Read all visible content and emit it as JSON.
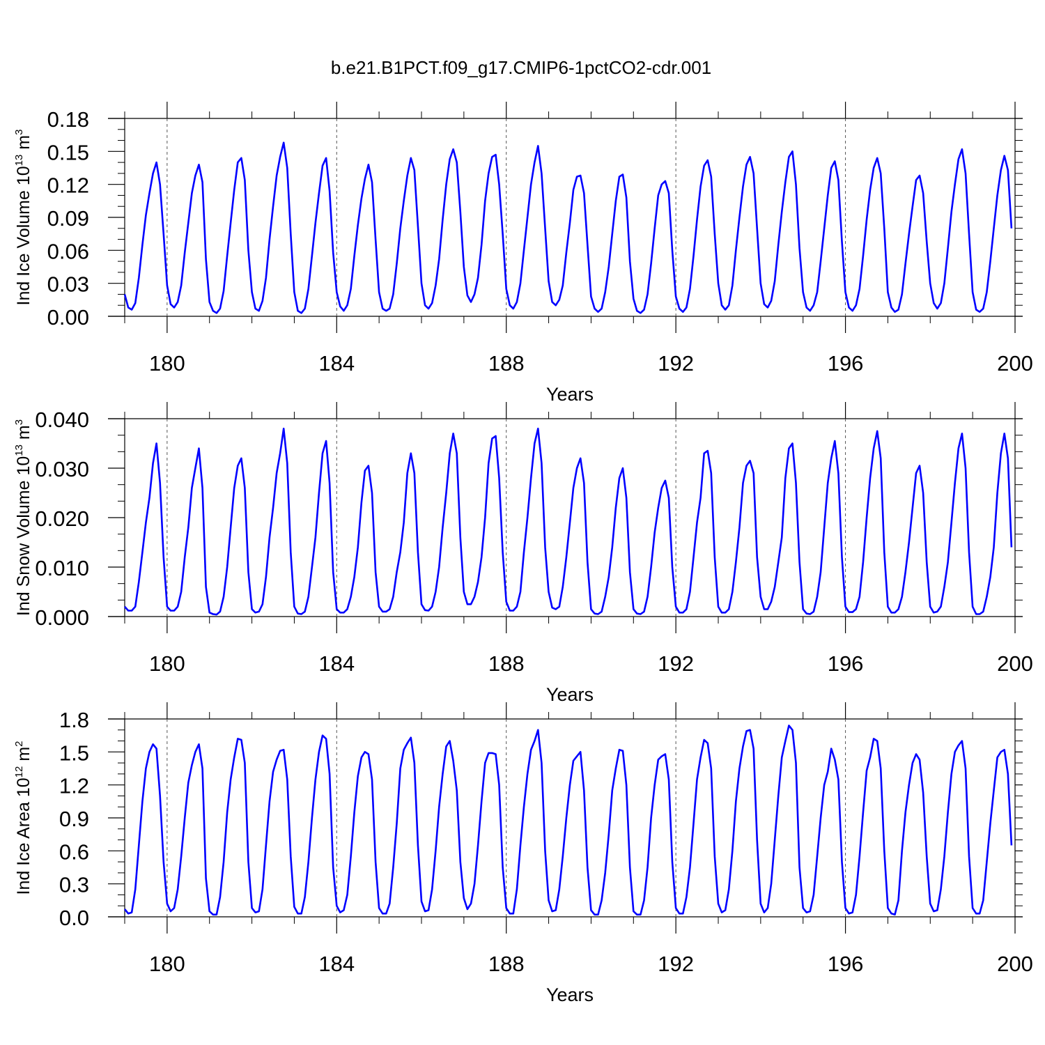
{
  "title": "b.e21.B1PCT.f09_g17.CMIP6-1pctCO2-cdr.001",
  "line_color": "#0000ff",
  "chart_data": [
    {
      "type": "line",
      "title": "",
      "xlabel": "Years",
      "ylabel_text": "Ind Ice Volume 10",
      "ylabel_exp": "13",
      "ylabel_unit": " m",
      "ylabel_unit_exp": "3",
      "xlim": [
        179,
        200
      ],
      "ylim": [
        0,
        0.18
      ],
      "xticks": [
        180,
        184,
        188,
        192,
        196,
        200
      ],
      "xtick_labels": [
        "180",
        "184",
        "188",
        "192",
        "196",
        "200"
      ],
      "yticks": [
        0,
        0.03,
        0.06,
        0.09,
        0.12,
        0.15,
        0.18
      ],
      "ytick_labels": [
        "0.00",
        "0.03",
        "0.06",
        "0.09",
        "0.12",
        "0.15",
        "0.18"
      ],
      "dashed_x": [
        180,
        184,
        188,
        192,
        196
      ],
      "series": [
        {
          "color": "#0000ff",
          "x_start": 179.0,
          "x_step": 0.08333,
          "values": [
            0.02,
            0.008,
            0.006,
            0.012,
            0.035,
            0.065,
            0.092,
            0.112,
            0.13,
            0.14,
            0.12,
            0.075,
            0.028,
            0.011,
            0.008,
            0.013,
            0.028,
            0.058,
            0.085,
            0.112,
            0.128,
            0.138,
            0.122,
            0.052,
            0.013,
            0.005,
            0.003,
            0.007,
            0.023,
            0.055,
            0.085,
            0.115,
            0.14,
            0.144,
            0.124,
            0.06,
            0.022,
            0.007,
            0.005,
            0.014,
            0.035,
            0.07,
            0.1,
            0.128,
            0.145,
            0.158,
            0.135,
            0.075,
            0.022,
            0.005,
            0.003,
            0.007,
            0.025,
            0.055,
            0.085,
            0.112,
            0.137,
            0.144,
            0.114,
            0.058,
            0.022,
            0.009,
            0.005,
            0.01,
            0.025,
            0.055,
            0.083,
            0.107,
            0.125,
            0.138,
            0.122,
            0.07,
            0.022,
            0.007,
            0.005,
            0.007,
            0.02,
            0.048,
            0.08,
            0.105,
            0.128,
            0.144,
            0.133,
            0.082,
            0.03,
            0.01,
            0.007,
            0.012,
            0.028,
            0.052,
            0.088,
            0.12,
            0.143,
            0.152,
            0.14,
            0.095,
            0.045,
            0.019,
            0.013,
            0.02,
            0.035,
            0.065,
            0.105,
            0.13,
            0.145,
            0.147,
            0.12,
            0.075,
            0.025,
            0.01,
            0.007,
            0.013,
            0.03,
            0.06,
            0.09,
            0.12,
            0.14,
            0.155,
            0.13,
            0.08,
            0.032,
            0.013,
            0.01,
            0.015,
            0.028,
            0.058,
            0.085,
            0.115,
            0.127,
            0.128,
            0.112,
            0.065,
            0.018,
            0.007,
            0.004,
            0.007,
            0.022,
            0.045,
            0.075,
            0.105,
            0.127,
            0.129,
            0.108,
            0.05,
            0.016,
            0.005,
            0.003,
            0.006,
            0.02,
            0.048,
            0.08,
            0.11,
            0.12,
            0.123,
            0.112,
            0.06,
            0.018,
            0.007,
            0.004,
            0.008,
            0.025,
            0.055,
            0.088,
            0.118,
            0.137,
            0.142,
            0.127,
            0.075,
            0.03,
            0.01,
            0.006,
            0.01,
            0.028,
            0.06,
            0.09,
            0.118,
            0.138,
            0.145,
            0.13,
            0.08,
            0.03,
            0.011,
            0.008,
            0.014,
            0.032,
            0.065,
            0.095,
            0.122,
            0.145,
            0.15,
            0.12,
            0.062,
            0.022,
            0.008,
            0.005,
            0.01,
            0.022,
            0.05,
            0.08,
            0.11,
            0.135,
            0.141,
            0.124,
            0.068,
            0.022,
            0.008,
            0.005,
            0.01,
            0.025,
            0.055,
            0.088,
            0.115,
            0.135,
            0.144,
            0.13,
            0.08,
            0.022,
            0.008,
            0.004,
            0.006,
            0.02,
            0.048,
            0.075,
            0.1,
            0.124,
            0.128,
            0.112,
            0.068,
            0.03,
            0.012,
            0.007,
            0.012,
            0.03,
            0.062,
            0.095,
            0.12,
            0.143,
            0.152,
            0.13,
            0.075,
            0.022,
            0.006,
            0.004,
            0.007,
            0.022,
            0.05,
            0.08,
            0.11,
            0.133,
            0.146,
            0.133,
            0.08
          ]
        }
      ]
    },
    {
      "type": "line",
      "title": "",
      "xlabel": "Years",
      "ylabel_text": "Ind Snow Volume 10",
      "ylabel_exp": "13",
      "ylabel_unit": " m",
      "ylabel_unit_exp": "3",
      "xlim": [
        179,
        200
      ],
      "ylim": [
        0,
        0.04
      ],
      "xticks": [
        180,
        184,
        188,
        192,
        196,
        200
      ],
      "xtick_labels": [
        "180",
        "184",
        "188",
        "192",
        "196",
        "200"
      ],
      "yticks": [
        0,
        0.01,
        0.02,
        0.03,
        0.04
      ],
      "ytick_labels": [
        "0.000",
        "0.010",
        "0.020",
        "0.030",
        "0.040"
      ],
      "dashed_x": [
        180,
        184,
        188,
        192,
        196
      ],
      "series": [
        {
          "color": "#0000ff",
          "x_start": 179.0,
          "x_step": 0.08333,
          "values": [
            0.002,
            0.0012,
            0.0012,
            0.002,
            0.007,
            0.013,
            0.019,
            0.024,
            0.031,
            0.035,
            0.027,
            0.012,
            0.002,
            0.0012,
            0.0012,
            0.002,
            0.005,
            0.012,
            0.018,
            0.026,
            0.03,
            0.034,
            0.026,
            0.006,
            0.0008,
            0.0005,
            0.0004,
            0.001,
            0.004,
            0.01,
            0.018,
            0.026,
            0.0305,
            0.032,
            0.026,
            0.009,
            0.0015,
            0.0008,
            0.001,
            0.0025,
            0.008,
            0.016,
            0.022,
            0.029,
            0.033,
            0.038,
            0.031,
            0.013,
            0.002,
            0.0006,
            0.0005,
            0.001,
            0.004,
            0.01,
            0.016,
            0.025,
            0.033,
            0.0355,
            0.027,
            0.009,
            0.0015,
            0.0008,
            0.0008,
            0.0015,
            0.004,
            0.008,
            0.014,
            0.023,
            0.0295,
            0.0305,
            0.025,
            0.009,
            0.002,
            0.001,
            0.001,
            0.0015,
            0.004,
            0.009,
            0.013,
            0.019,
            0.029,
            0.033,
            0.029,
            0.013,
            0.0025,
            0.0013,
            0.0012,
            0.002,
            0.005,
            0.01,
            0.018,
            0.025,
            0.033,
            0.037,
            0.033,
            0.016,
            0.005,
            0.0025,
            0.0025,
            0.004,
            0.007,
            0.012,
            0.02,
            0.031,
            0.036,
            0.0365,
            0.028,
            0.013,
            0.003,
            0.0012,
            0.0012,
            0.002,
            0.005,
            0.013,
            0.02,
            0.028,
            0.035,
            0.038,
            0.031,
            0.014,
            0.005,
            0.0018,
            0.0015,
            0.002,
            0.006,
            0.012,
            0.019,
            0.026,
            0.03,
            0.032,
            0.027,
            0.011,
            0.0015,
            0.0006,
            0.0005,
            0.001,
            0.004,
            0.008,
            0.014,
            0.022,
            0.028,
            0.03,
            0.024,
            0.009,
            0.0015,
            0.0006,
            0.0005,
            0.001,
            0.004,
            0.01,
            0.017,
            0.022,
            0.026,
            0.0275,
            0.024,
            0.01,
            0.002,
            0.0008,
            0.0008,
            0.0015,
            0.005,
            0.012,
            0.019,
            0.024,
            0.033,
            0.0335,
            0.029,
            0.012,
            0.002,
            0.0008,
            0.0008,
            0.0015,
            0.005,
            0.011,
            0.018,
            0.027,
            0.0305,
            0.0315,
            0.029,
            0.012,
            0.004,
            0.0015,
            0.0015,
            0.003,
            0.006,
            0.011,
            0.016,
            0.028,
            0.034,
            0.035,
            0.027,
            0.011,
            0.0015,
            0.0006,
            0.0005,
            0.001,
            0.004,
            0.009,
            0.018,
            0.027,
            0.032,
            0.0355,
            0.029,
            0.012,
            0.002,
            0.0009,
            0.0009,
            0.0015,
            0.004,
            0.011,
            0.02,
            0.028,
            0.034,
            0.0375,
            0.032,
            0.013,
            0.002,
            0.0008,
            0.0008,
            0.0015,
            0.004,
            0.009,
            0.015,
            0.022,
            0.029,
            0.0305,
            0.025,
            0.011,
            0.002,
            0.0008,
            0.001,
            0.002,
            0.006,
            0.011,
            0.019,
            0.027,
            0.034,
            0.037,
            0.03,
            0.013,
            0.002,
            0.0005,
            0.0005,
            0.001,
            0.004,
            0.008,
            0.014,
            0.025,
            0.033,
            0.037,
            0.032,
            0.014
          ]
        }
      ]
    },
    {
      "type": "line",
      "title": "",
      "xlabel": "Years",
      "ylabel_text": "Ind Ice Area 10",
      "ylabel_exp": "12",
      "ylabel_unit": " m",
      "ylabel_unit_exp": "2",
      "xlim": [
        179,
        200
      ],
      "ylim": [
        0,
        1.8
      ],
      "xticks": [
        180,
        184,
        188,
        192,
        196,
        200
      ],
      "xtick_labels": [
        "180",
        "184",
        "188",
        "192",
        "196",
        "200"
      ],
      "yticks": [
        0,
        0.3,
        0.6,
        0.9,
        1.2,
        1.5,
        1.8
      ],
      "ytick_labels": [
        "0.0",
        "0.3",
        "0.6",
        "0.9",
        "1.2",
        "1.5",
        "1.8"
      ],
      "dashed_x": [
        180,
        184,
        188,
        192,
        196
      ],
      "series": [
        {
          "color": "#0000ff",
          "x_start": 179.0,
          "x_step": 0.08333,
          "values": [
            0.07,
            0.03,
            0.04,
            0.25,
            0.65,
            1.05,
            1.35,
            1.5,
            1.57,
            1.53,
            1.1,
            0.5,
            0.12,
            0.05,
            0.08,
            0.25,
            0.55,
            0.9,
            1.22,
            1.38,
            1.5,
            1.57,
            1.35,
            0.35,
            0.05,
            0.02,
            0.02,
            0.18,
            0.5,
            0.95,
            1.25,
            1.45,
            1.62,
            1.61,
            1.4,
            0.5,
            0.08,
            0.04,
            0.05,
            0.25,
            0.65,
            1.05,
            1.32,
            1.43,
            1.51,
            1.52,
            1.25,
            0.55,
            0.09,
            0.03,
            0.03,
            0.18,
            0.5,
            0.9,
            1.25,
            1.5,
            1.65,
            1.62,
            1.3,
            0.45,
            0.1,
            0.04,
            0.06,
            0.2,
            0.55,
            0.95,
            1.28,
            1.45,
            1.5,
            1.48,
            1.25,
            0.5,
            0.08,
            0.03,
            0.03,
            0.12,
            0.45,
            0.85,
            1.35,
            1.52,
            1.58,
            1.63,
            1.4,
            0.65,
            0.14,
            0.05,
            0.06,
            0.25,
            0.6,
            1.0,
            1.3,
            1.55,
            1.6,
            1.42,
            1.15,
            0.5,
            0.17,
            0.07,
            0.12,
            0.3,
            0.65,
            1.05,
            1.4,
            1.49,
            1.49,
            1.48,
            1.2,
            0.45,
            0.08,
            0.03,
            0.03,
            0.25,
            0.65,
            1.0,
            1.3,
            1.52,
            1.6,
            1.7,
            1.4,
            0.6,
            0.15,
            0.05,
            0.06,
            0.25,
            0.55,
            0.9,
            1.2,
            1.42,
            1.46,
            1.5,
            1.15,
            0.45,
            0.06,
            0.02,
            0.02,
            0.15,
            0.4,
            0.75,
            1.15,
            1.35,
            1.52,
            1.51,
            1.2,
            0.45,
            0.05,
            0.02,
            0.02,
            0.15,
            0.45,
            0.9,
            1.2,
            1.43,
            1.46,
            1.48,
            1.25,
            0.5,
            0.08,
            0.03,
            0.03,
            0.18,
            0.45,
            0.85,
            1.25,
            1.45,
            1.61,
            1.58,
            1.35,
            0.55,
            0.12,
            0.04,
            0.06,
            0.25,
            0.6,
            1.05,
            1.35,
            1.55,
            1.69,
            1.7,
            1.53,
            0.7,
            0.12,
            0.04,
            0.08,
            0.3,
            0.7,
            1.1,
            1.45,
            1.6,
            1.74,
            1.7,
            1.4,
            0.45,
            0.08,
            0.04,
            0.05,
            0.2,
            0.55,
            0.9,
            1.2,
            1.32,
            1.53,
            1.43,
            1.25,
            0.5,
            0.08,
            0.03,
            0.04,
            0.2,
            0.55,
            0.95,
            1.33,
            1.45,
            1.62,
            1.6,
            1.35,
            0.6,
            0.08,
            0.03,
            0.02,
            0.15,
            0.6,
            0.95,
            1.2,
            1.4,
            1.48,
            1.43,
            1.13,
            0.55,
            0.12,
            0.05,
            0.06,
            0.25,
            0.55,
            0.95,
            1.3,
            1.5,
            1.56,
            1.6,
            1.35,
            0.55,
            0.08,
            0.03,
            0.03,
            0.15,
            0.5,
            0.85,
            1.15,
            1.45,
            1.5,
            1.52,
            1.3,
            0.65
          ]
        }
      ]
    }
  ]
}
